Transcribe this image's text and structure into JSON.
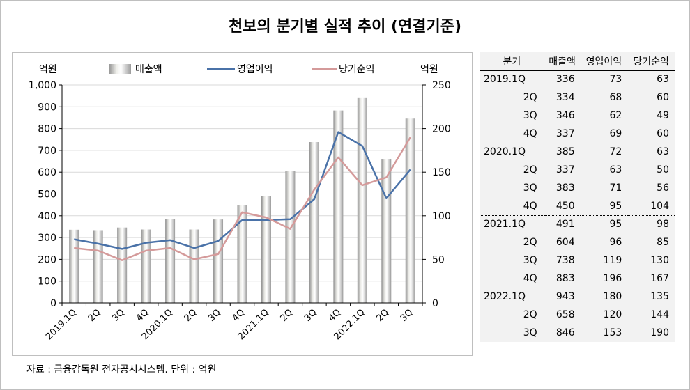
{
  "title": "천보의 분기별 실적 추이 (연결기준)",
  "source": "자료 : 금융감독원 전자공시시스템. 단위 : 억원",
  "chart_data": {
    "type": "bar",
    "left_unit": "억원",
    "right_unit": "억원",
    "categories": [
      "2019.1Q",
      "2Q",
      "3Q",
      "4Q",
      "2020.1Q",
      "2Q",
      "3Q",
      "4Q",
      "2021.1Q",
      "2Q",
      "3Q",
      "4Q",
      "2022.1Q",
      "2Q",
      "3Q"
    ],
    "series": [
      {
        "name": "매출액",
        "type": "bar",
        "axis": "left",
        "values": [
          336,
          334,
          346,
          337,
          385,
          337,
          383,
          450,
          491,
          604,
          738,
          883,
          943,
          658,
          846
        ]
      },
      {
        "name": "영업이익",
        "type": "line",
        "axis": "right",
        "color": "#4a72a8",
        "values": [
          73,
          68,
          62,
          69,
          72,
          63,
          71,
          95,
          95,
          96,
          119,
          196,
          180,
          120,
          153
        ]
      },
      {
        "name": "당기순익",
        "type": "line",
        "axis": "right",
        "color": "#d49a9a",
        "values": [
          63,
          60,
          49,
          60,
          63,
          50,
          56,
          104,
          98,
          85,
          130,
          167,
          135,
          144,
          190
        ]
      }
    ],
    "left_axis": {
      "min": 0,
      "max": 1000,
      "ticks": [
        "0",
        "100",
        "200",
        "300",
        "400",
        "500",
        "600",
        "700",
        "800",
        "900",
        "1,000"
      ]
    },
    "right_axis": {
      "min": 0,
      "max": 250,
      "ticks": [
        "0",
        "50",
        "100",
        "150",
        "200",
        "250"
      ]
    },
    "legend_position": "top"
  },
  "table": {
    "headers": [
      "분기",
      "매출액",
      "영업이익",
      "당기순익"
    ],
    "rows": [
      [
        "2019.1Q",
        "336",
        "73",
        "63"
      ],
      [
        "2Q",
        "334",
        "68",
        "60"
      ],
      [
        "3Q",
        "346",
        "62",
        "49"
      ],
      [
        "4Q",
        "337",
        "69",
        "60"
      ],
      [
        "2020.1Q",
        "385",
        "72",
        "63"
      ],
      [
        "2Q",
        "337",
        "63",
        "50"
      ],
      [
        "3Q",
        "383",
        "71",
        "56"
      ],
      [
        "4Q",
        "450",
        "95",
        "104"
      ],
      [
        "2021.1Q",
        "491",
        "95",
        "98"
      ],
      [
        "2Q",
        "604",
        "96",
        "85"
      ],
      [
        "3Q",
        "738",
        "119",
        "130"
      ],
      [
        "4Q",
        "883",
        "196",
        "167"
      ],
      [
        "2022.1Q",
        "943",
        "180",
        "135"
      ],
      [
        "2Q",
        "658",
        "120",
        "144"
      ],
      [
        "3Q",
        "846",
        "153",
        "190"
      ]
    ]
  }
}
